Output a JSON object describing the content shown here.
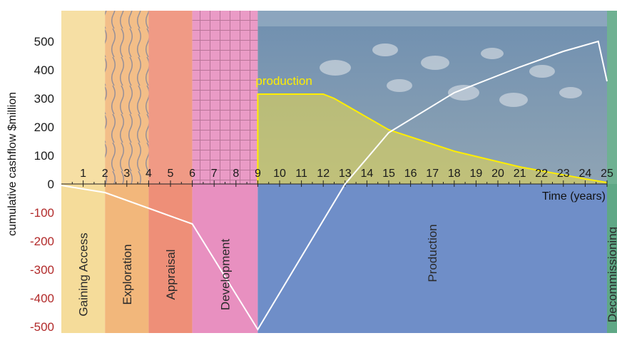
{
  "chart_data": {
    "type": "line",
    "xlabel": "Time (years)",
    "ylabel": "cumulative cashflow $million",
    "xlim": [
      0,
      25
    ],
    "ylim": [
      -520,
      510
    ],
    "x_ticks": [
      1,
      2,
      3,
      4,
      5,
      6,
      7,
      8,
      9,
      10,
      11,
      12,
      13,
      14,
      15,
      16,
      17,
      18,
      19,
      20,
      21,
      22,
      23,
      24,
      25
    ],
    "y_ticks": [
      {
        "value": 500,
        "label": "500"
      },
      {
        "value": 400,
        "label": "400"
      },
      {
        "value": 300,
        "label": "300"
      },
      {
        "value": 200,
        "label": "200"
      },
      {
        "value": 100,
        "label": "100"
      },
      {
        "value": 0,
        "label": "0"
      },
      {
        "value": -100,
        "label": "-100"
      },
      {
        "value": -200,
        "label": "-200"
      },
      {
        "value": -300,
        "label": "-300"
      },
      {
        "value": -400,
        "label": "-400"
      },
      {
        "value": -500,
        "label": "-500"
      }
    ],
    "colors": {
      "positive_tick": "#1a1a1a",
      "negative_tick": "#b22a2a",
      "cashflow_line": "#ffffff",
      "production_line": "#ffee00"
    },
    "phases": [
      {
        "label": "Gaining Access",
        "start": 0,
        "end": 2,
        "color": "#f5dc9a"
      },
      {
        "label": "Exploration",
        "start": 2,
        "end": 4,
        "color": "#f2b77b"
      },
      {
        "label": "Appraisal",
        "start": 4,
        "end": 6,
        "color": "#ee8f78"
      },
      {
        "label": "Development",
        "start": 6,
        "end": 9,
        "color": "#e890c0"
      },
      {
        "label": "Production",
        "start": 9,
        "end": 25,
        "color": "#6f8ec8"
      },
      {
        "label": "Decommissioning",
        "start": 25,
        "end": 26,
        "color": "#5fa886"
      }
    ],
    "series": [
      {
        "values_x": [
          0,
          2,
          4,
          6,
          9,
          13,
          15,
          18,
          21,
          23,
          24.6,
          25
        ],
        "values_y": [
          -5,
          -30,
          -85,
          -140,
          -510,
          0,
          180,
          320,
          410,
          465,
          500,
          360
        ]
      },
      {
        "name": "production",
        "values_x": [
          9,
          9,
          12,
          12.5,
          15,
          18,
          21,
          24,
          25
        ],
        "values_y": [
          0,
          315,
          315,
          300,
          190,
          115,
          60,
          18,
          5
        ]
      }
    ]
  }
}
